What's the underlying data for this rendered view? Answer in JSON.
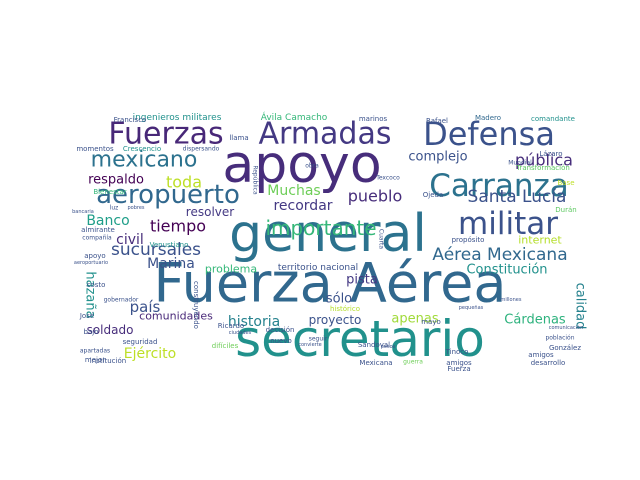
{
  "words": [
    {
      "text": "Fuerza Aérea",
      "color": "#31688e"
    },
    {
      "text": "secretario",
      "color": "#21918c"
    },
    {
      "text": "general",
      "color": "#2c728e"
    },
    {
      "text": "apoyo",
      "color": "#472d7b"
    },
    {
      "text": "Defensa",
      "color": "#3b528b"
    },
    {
      "text": "Fuerzas",
      "color": "#482878"
    },
    {
      "text": "Armadas",
      "color": "#443983"
    },
    {
      "text": "Carranza",
      "color": "#2c728e"
    },
    {
      "text": "militar",
      "color": "#3b528b"
    },
    {
      "text": "mexicano",
      "color": "#2c728e"
    },
    {
      "text": "aeropuerto",
      "color": "#31688e"
    },
    {
      "text": "importante",
      "color": "#35b779"
    },
    {
      "text": "Aérea Mexicana",
      "color": "#31688e"
    },
    {
      "text": "Santa Lucía",
      "color": "#3b528b"
    },
    {
      "text": "pueblo",
      "color": "#472d7b"
    },
    {
      "text": "pública",
      "color": "#472d7b"
    },
    {
      "text": "complejo",
      "color": "#3b528b"
    },
    {
      "text": "sucursales",
      "color": "#3b528b"
    },
    {
      "text": "tiempo",
      "color": "#440154"
    },
    {
      "text": "respaldo",
      "color": "#440154"
    },
    {
      "text": "toda",
      "color": "#bddf26"
    },
    {
      "text": "Muchas",
      "color": "#6ece58"
    },
    {
      "text": "recordar",
      "color": "#443983"
    },
    {
      "text": "Marina",
      "color": "#3b528b"
    },
    {
      "text": "Banco",
      "color": "#1f9e89"
    },
    {
      "text": "civil",
      "color": "#472d7b"
    },
    {
      "text": "resolver",
      "color": "#443983"
    },
    {
      "text": "Constitución",
      "color": "#21918c"
    },
    {
      "text": "hazaña",
      "color": "#21918c"
    },
    {
      "text": "país",
      "color": "#3b528b"
    },
    {
      "text": "historia",
      "color": "#26828e"
    },
    {
      "text": "proyecto",
      "color": "#3b528b"
    },
    {
      "text": "apenas",
      "color": "#a0da39"
    },
    {
      "text": "Cárdenas",
      "color": "#2db27d"
    },
    {
      "text": "pista",
      "color": "#443983"
    },
    {
      "text": "sólo",
      "color": "#3b528b"
    },
    {
      "text": "Ejército",
      "color": "#bddf26"
    },
    {
      "text": "comunidades",
      "color": "#482878"
    },
    {
      "text": "soldado",
      "color": "#472d7b"
    },
    {
      "text": "calidad",
      "color": "#26828e"
    },
    {
      "text": "problema",
      "color": "#35b779"
    },
    {
      "text": "internet",
      "color": "#b5de2b"
    },
    {
      "text": "territorio nacional",
      "color": "#3b528b"
    },
    {
      "text": "ingenieros militares",
      "color": "#21918c"
    },
    {
      "text": "Ávila Camacho",
      "color": "#35b779"
    },
    {
      "text": "Francisco",
      "color": "#3b528b"
    },
    {
      "text": "marinos",
      "color": "#3b528b"
    },
    {
      "text": "Rafael",
      "color": "#3b528b"
    },
    {
      "text": "Madero",
      "color": "#31688e"
    },
    {
      "text": "comandante",
      "color": "#21918c"
    },
    {
      "text": "momentos",
      "color": "#3b528b"
    },
    {
      "text": "Crescencio",
      "color": "#21918c"
    },
    {
      "text": "dispersando",
      "color": "#3b528b"
    },
    {
      "text": "llama",
      "color": "#3b528b"
    },
    {
      "text": "Lázaro",
      "color": "#3b528b"
    },
    {
      "text": "Mundial",
      "color": "#3b528b"
    },
    {
      "text": "Transformación",
      "color": "#5ec962"
    },
    {
      "text": "Base",
      "color": "#bddf26"
    },
    {
      "text": "Bienestar",
      "color": "#35b779"
    },
    {
      "text": "obra",
      "color": "#3b528b"
    },
    {
      "text": "Texcoco",
      "color": "#3b528b"
    },
    {
      "text": "Ojeda",
      "color": "#3b528b"
    },
    {
      "text": "Durán",
      "color": "#5ec962"
    },
    {
      "text": "luz",
      "color": "#3b528b"
    },
    {
      "text": "pobres",
      "color": "#3b528b"
    },
    {
      "text": "Venustiano",
      "color": "#21918c"
    },
    {
      "text": "bancaria",
      "color": "#3b528b"
    },
    {
      "text": "almirante",
      "color": "#3b528b"
    },
    {
      "text": "compañía",
      "color": "#3b528b"
    },
    {
      "text": "Cuarta",
      "color": "#3b528b"
    },
    {
      "text": "propósito",
      "color": "#3b528b"
    },
    {
      "text": "apoyo",
      "color": "#3b528b"
    },
    {
      "text": "aeroportuario",
      "color": "#3b528b"
    },
    {
      "text": "costo",
      "color": "#3b528b"
    },
    {
      "text": "gobernador",
      "color": "#3b528b"
    },
    {
      "text": "José",
      "color": "#3b528b"
    },
    {
      "text": "bajo",
      "color": "#3b528b"
    },
    {
      "text": "amigos",
      "color": "#3b528b"
    },
    {
      "text": "mayo",
      "color": "#3b528b"
    },
    {
      "text": "Ricardo",
      "color": "#3b528b"
    },
    {
      "text": "decisión",
      "color": "#3b528b"
    },
    {
      "text": "difíciles",
      "color": "#6ece58"
    },
    {
      "text": "convierte",
      "color": "#3b528b"
    },
    {
      "text": "nuevo",
      "color": "#3b528b"
    },
    {
      "text": "seguir",
      "color": "#3b528b"
    },
    {
      "text": "Sandoval",
      "color": "#3b528b"
    },
    {
      "text": "Mexicana",
      "color": "#3b528b"
    },
    {
      "text": "guerra",
      "color": "#6ece58"
    },
    {
      "text": "pesos",
      "color": "#3b528b"
    },
    {
      "text": "Tinoco",
      "color": "#3b528b"
    },
    {
      "text": "González",
      "color": "#3b528b"
    },
    {
      "text": "amigos",
      "color": "#3b528b"
    },
    {
      "text": "desarrollo",
      "color": "#3b528b"
    },
    {
      "text": "población",
      "color": "#3b528b"
    },
    {
      "text": "seguridad",
      "color": "#3b528b"
    },
    {
      "text": "Fuerza",
      "color": "#3b528b"
    },
    {
      "text": "institución",
      "color": "#3b528b"
    },
    {
      "text": "apartadas",
      "color": "#3b528b"
    },
    {
      "text": "mejor",
      "color": "#3b528b"
    },
    {
      "text": "comunicación",
      "color": "#3b528b"
    },
    {
      "text": "millones",
      "color": "#3b528b"
    },
    {
      "text": "pequeñas",
      "color": "#3b528b"
    },
    {
      "text": "República",
      "color": "#3b528b"
    },
    {
      "text": "histórico",
      "color": "#b5de2b"
    },
    {
      "text": "construyendo",
      "color": "#3b528b"
    },
    {
      "text": "ciudades",
      "color": "#3b528b"
    }
  ]
}
